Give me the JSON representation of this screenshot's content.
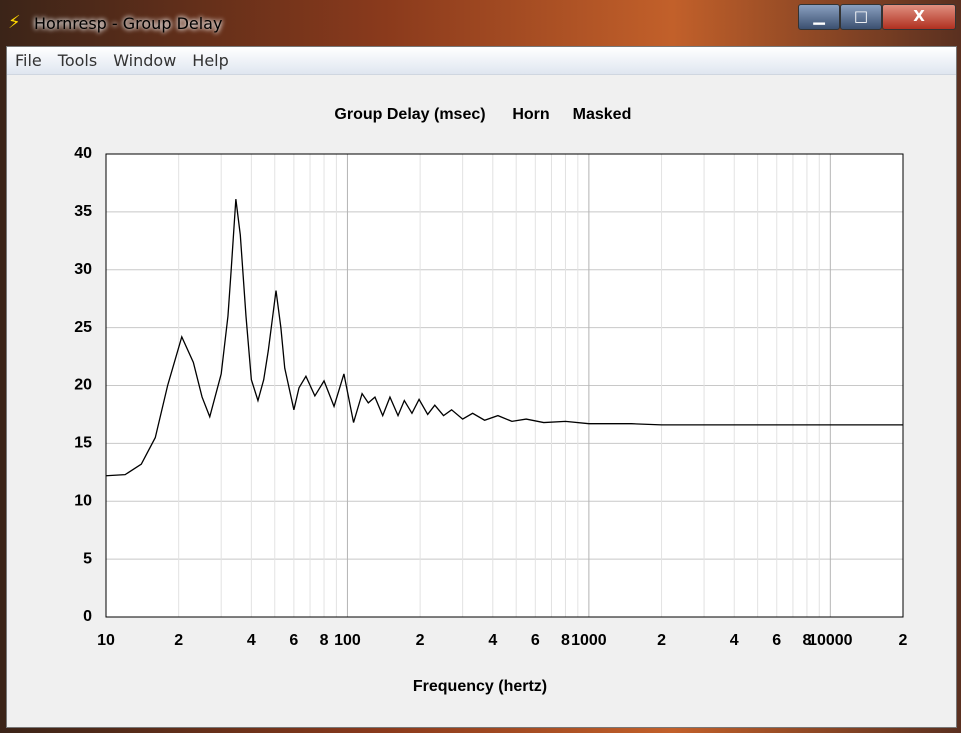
{
  "window": {
    "title": "Hornresp - Group Delay"
  },
  "menu": [
    "File",
    "Tools",
    "Window",
    "Help"
  ],
  "chart_data": {
    "type": "line",
    "title": "Group Delay (msec)",
    "annotations": [
      "Horn",
      "Masked"
    ],
    "xlabel": "Frequency (hertz)",
    "xscale": "log",
    "grid": true,
    "color": "#000000",
    "x": [
      10,
      12,
      14,
      16,
      18,
      20.6,
      23,
      25,
      26.9,
      30,
      32,
      33,
      34.5,
      36,
      38,
      40,
      42.6,
      45,
      47,
      50.6,
      53,
      55,
      60,
      63,
      67.3,
      73.3,
      80,
      88,
      96.7,
      106,
      115,
      122,
      130,
      140,
      150,
      162,
      172,
      185,
      198,
      215,
      230,
      250,
      270,
      300,
      330,
      370,
      420,
      480,
      550,
      650,
      800,
      1000,
      1500,
      2000,
      5000,
      10000,
      20000
    ],
    "values": [
      12.2,
      12.3,
      13.2,
      15.5,
      20,
      24.2,
      22,
      19,
      17.3,
      21,
      26,
      30,
      36.1,
      33,
      26,
      20.5,
      18.7,
      20.5,
      23,
      28.2,
      25,
      21.5,
      17.9,
      19.8,
      20.8,
      19.1,
      20.4,
      18.2,
      21,
      16.8,
      19.3,
      18.5,
      19,
      17.4,
      19,
      17.4,
      18.7,
      17.6,
      18.8,
      17.5,
      18.3,
      17.4,
      17.9,
      17.1,
      17.6,
      17,
      17.4,
      16.9,
      17.1,
      16.8,
      16.9,
      16.7,
      16.7,
      16.6,
      16.6,
      16.6,
      16.6
    ],
    "xlim": [
      10,
      20000
    ],
    "ylim": [
      0,
      40
    ],
    "yticks": [
      0,
      5,
      10,
      15,
      20,
      25,
      30,
      35,
      40
    ],
    "xticks": [
      10,
      {
        "value": 20,
        "label": "2"
      },
      {
        "value": 40,
        "label": "4"
      },
      {
        "value": 60,
        "label": "6"
      },
      {
        "value": 80,
        "label": "8"
      },
      100,
      {
        "value": 200,
        "label": "2"
      },
      {
        "value": 400,
        "label": "4"
      },
      {
        "value": 600,
        "label": "6"
      },
      {
        "value": 800,
        "label": "8"
      },
      1000,
      {
        "value": 2000,
        "label": "2"
      },
      {
        "value": 4000,
        "label": "4"
      },
      {
        "value": 6000,
        "label": "6"
      },
      {
        "value": 8000,
        "label": "8"
      },
      10000,
      {
        "value": 20000,
        "label": "2"
      }
    ],
    "xminorticks": [
      30,
      50,
      70,
      90,
      300,
      500,
      700,
      900,
      3000,
      5000,
      7000,
      9000
    ]
  }
}
